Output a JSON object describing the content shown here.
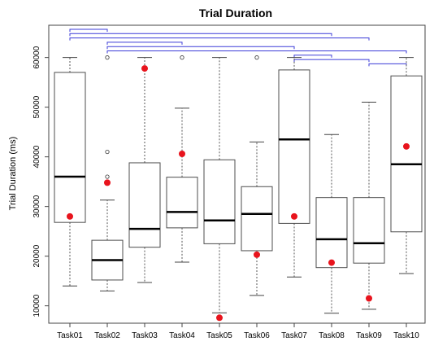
{
  "chart_data": {
    "type": "box",
    "title": "Trial Duration",
    "ylabel": "Trial Duration (ms)",
    "xlabel": "",
    "ylim": [
      6500,
      66500
    ],
    "yticks": [
      10000,
      20000,
      30000,
      40000,
      50000,
      60000
    ],
    "grid": false,
    "categories": [
      "Task01",
      "Task02",
      "Task03",
      "Task04",
      "Task05",
      "Task06",
      "Task07",
      "Task08",
      "Task09",
      "Task10"
    ],
    "boxes": [
      {
        "label": "Task01",
        "whisker_low": 14000,
        "q1": 26800,
        "median": 36000,
        "q3": 57000,
        "whisker_high": 60000,
        "outliers": [],
        "mean": 28000
      },
      {
        "label": "Task02",
        "whisker_low": 13000,
        "q1": 15200,
        "median": 19200,
        "q3": 23200,
        "whisker_high": 31300,
        "outliers": [
          36000,
          41000,
          60000
        ],
        "mean": 34800
      },
      {
        "label": "Task03",
        "whisker_low": 14700,
        "q1": 21800,
        "median": 25500,
        "q3": 38800,
        "whisker_high": 60000,
        "outliers": [],
        "mean": 57800
      },
      {
        "label": "Task04",
        "whisker_low": 18800,
        "q1": 25700,
        "median": 28900,
        "q3": 35900,
        "whisker_high": 49800,
        "outliers": [
          60000
        ],
        "mean": 40600
      },
      {
        "label": "Task05",
        "whisker_low": 8600,
        "q1": 22500,
        "median": 27200,
        "q3": 39400,
        "whisker_high": 60000,
        "outliers": [],
        "mean": 7600
      },
      {
        "label": "Task06",
        "whisker_low": 12100,
        "q1": 21100,
        "median": 28500,
        "q3": 34000,
        "whisker_high": 43000,
        "outliers": [
          60000
        ],
        "mean": 20300
      },
      {
        "label": "Task07",
        "whisker_low": 15800,
        "q1": 26600,
        "median": 43500,
        "q3": 57500,
        "whisker_high": 60000,
        "outliers": [],
        "mean": 28000
      },
      {
        "label": "Task08",
        "whisker_low": 8500,
        "q1": 17700,
        "median": 23400,
        "q3": 31800,
        "whisker_high": 44500,
        "outliers": [],
        "mean": 18700
      },
      {
        "label": "Task09",
        "whisker_low": 9300,
        "q1": 18600,
        "median": 22600,
        "q3": 31800,
        "whisker_high": 51000,
        "outliers": [],
        "mean": 11500
      },
      {
        "label": "Task10",
        "whisker_low": 16500,
        "q1": 24900,
        "median": 38500,
        "q3": 56300,
        "whisker_high": 60000,
        "outliers": [],
        "mean": 42100
      }
    ],
    "significance_brackets": [
      {
        "from": "Task01",
        "to": "Task02"
      },
      {
        "from": "Task01",
        "to": "Task08"
      },
      {
        "from": "Task01",
        "to": "Task09"
      },
      {
        "from": "Task02",
        "to": "Task04"
      },
      {
        "from": "Task02",
        "to": "Task07"
      },
      {
        "from": "Task02",
        "to": "Task10"
      },
      {
        "from": "Task07",
        "to": "Task08"
      },
      {
        "from": "Task07",
        "to": "Task09"
      },
      {
        "from": "Task09",
        "to": "Task10"
      }
    ],
    "colors": {
      "box_stroke": "#4d4d4d",
      "median": "#000000",
      "mean_marker": "#e8141d",
      "bracket": "#3b3bd8",
      "outlier": "#333333"
    }
  }
}
